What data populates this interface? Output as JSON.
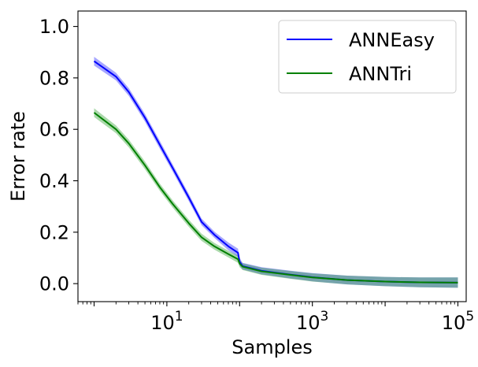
{
  "chart_data": {
    "type": "line",
    "title": "",
    "xlabel": "Samples",
    "ylabel": "Error rate",
    "xscale": "log",
    "xlim": [
      0.6,
      130000
    ],
    "ylim": [
      -0.07,
      1.06
    ],
    "xticks": [
      {
        "value": 10,
        "base": "10",
        "exp": "1"
      },
      {
        "value": 1000,
        "base": "10",
        "exp": "3"
      },
      {
        "value": 100000,
        "base": "10",
        "exp": "5"
      }
    ],
    "yticks": [
      {
        "value": 0.0,
        "label": "0.0"
      },
      {
        "value": 0.2,
        "label": "0.2"
      },
      {
        "value": 0.4,
        "label": "0.4"
      },
      {
        "value": 0.6,
        "label": "0.6"
      },
      {
        "value": 0.8,
        "label": "0.8"
      },
      {
        "value": 1.0,
        "label": "1.0"
      }
    ],
    "grid": false,
    "legend_position": "top-right",
    "series": [
      {
        "name": "ANNEasy",
        "color": "#0000ff",
        "band_color": "#0000ff",
        "points": [
          {
            "x": 1,
            "y": 0.865,
            "lo": 0.848,
            "hi": 0.882
          },
          {
            "x": 2,
            "y": 0.805,
            "lo": 0.79,
            "hi": 0.82
          },
          {
            "x": 3,
            "y": 0.745,
            "lo": 0.73,
            "hi": 0.76
          },
          {
            "x": 5,
            "y": 0.645,
            "lo": 0.63,
            "hi": 0.66
          },
          {
            "x": 8,
            "y": 0.54,
            "lo": 0.525,
            "hi": 0.555
          },
          {
            "x": 12,
            "y": 0.45,
            "lo": 0.436,
            "hi": 0.464
          },
          {
            "x": 20,
            "y": 0.335,
            "lo": 0.321,
            "hi": 0.349
          },
          {
            "x": 30,
            "y": 0.24,
            "lo": 0.227,
            "hi": 0.253
          },
          {
            "x": 45,
            "y": 0.19,
            "lo": 0.178,
            "hi": 0.202
          },
          {
            "x": 70,
            "y": 0.145,
            "lo": 0.13,
            "hi": 0.16
          },
          {
            "x": 95,
            "y": 0.12,
            "lo": 0.104,
            "hi": 0.136
          },
          {
            "x": 100,
            "y": 0.085,
            "lo": 0.071,
            "hi": 0.099
          },
          {
            "x": 110,
            "y": 0.068,
            "lo": 0.055,
            "hi": 0.081
          },
          {
            "x": 200,
            "y": 0.05,
            "lo": 0.036,
            "hi": 0.064
          },
          {
            "x": 500,
            "y": 0.035,
            "lo": 0.02,
            "hi": 0.05
          },
          {
            "x": 1000,
            "y": 0.025,
            "lo": 0.009,
            "hi": 0.041
          },
          {
            "x": 3000,
            "y": 0.014,
            "lo": -0.003,
            "hi": 0.031
          },
          {
            "x": 10000,
            "y": 0.008,
            "lo": -0.01,
            "hi": 0.026
          },
          {
            "x": 30000,
            "y": 0.005,
            "lo": -0.014,
            "hi": 0.024
          },
          {
            "x": 100000,
            "y": 0.004,
            "lo": -0.016,
            "hi": 0.024
          }
        ]
      },
      {
        "name": "ANNTri",
        "color": "#008000",
        "band_color": "#2ca02c",
        "points": [
          {
            "x": 1,
            "y": 0.665,
            "lo": 0.648,
            "hi": 0.682
          },
          {
            "x": 2,
            "y": 0.6,
            "lo": 0.585,
            "hi": 0.615
          },
          {
            "x": 3,
            "y": 0.545,
            "lo": 0.53,
            "hi": 0.56
          },
          {
            "x": 5,
            "y": 0.46,
            "lo": 0.445,
            "hi": 0.475
          },
          {
            "x": 8,
            "y": 0.375,
            "lo": 0.361,
            "hi": 0.389
          },
          {
            "x": 12,
            "y": 0.31,
            "lo": 0.296,
            "hi": 0.324
          },
          {
            "x": 20,
            "y": 0.235,
            "lo": 0.221,
            "hi": 0.249
          },
          {
            "x": 30,
            "y": 0.18,
            "lo": 0.166,
            "hi": 0.194
          },
          {
            "x": 45,
            "y": 0.145,
            "lo": 0.132,
            "hi": 0.158
          },
          {
            "x": 70,
            "y": 0.115,
            "lo": 0.102,
            "hi": 0.128
          },
          {
            "x": 95,
            "y": 0.095,
            "lo": 0.081,
            "hi": 0.109
          },
          {
            "x": 100,
            "y": 0.078,
            "lo": 0.064,
            "hi": 0.092
          },
          {
            "x": 110,
            "y": 0.066,
            "lo": 0.053,
            "hi": 0.079
          },
          {
            "x": 200,
            "y": 0.048,
            "lo": 0.034,
            "hi": 0.062
          },
          {
            "x": 500,
            "y": 0.034,
            "lo": 0.019,
            "hi": 0.049
          },
          {
            "x": 1000,
            "y": 0.024,
            "lo": 0.008,
            "hi": 0.04
          },
          {
            "x": 3000,
            "y": 0.014,
            "lo": -0.003,
            "hi": 0.031
          },
          {
            "x": 10000,
            "y": 0.008,
            "lo": -0.01,
            "hi": 0.026
          },
          {
            "x": 30000,
            "y": 0.005,
            "lo": -0.014,
            "hi": 0.024
          },
          {
            "x": 100000,
            "y": 0.004,
            "lo": -0.016,
            "hi": 0.024
          }
        ]
      }
    ]
  }
}
